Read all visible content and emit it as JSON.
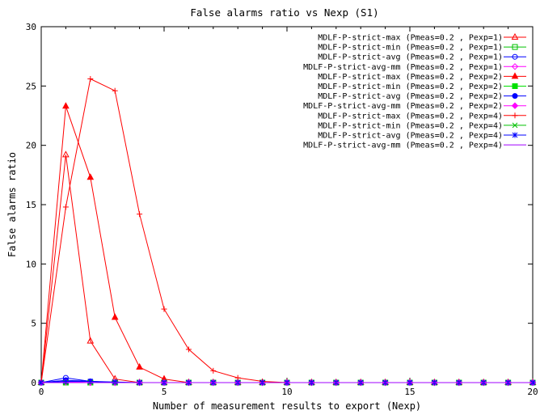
{
  "chart_data": {
    "type": "line",
    "title": "False alarms ratio vs Nexp (S1)",
    "xlabel": "Number of measurement results to export (Nexp)",
    "ylabel": "False alarms ratio",
    "xlim": [
      0,
      20
    ],
    "ylim": [
      0,
      30
    ],
    "xticks": [
      0,
      5,
      10,
      15,
      20
    ],
    "yticks": [
      0,
      5,
      10,
      15,
      20,
      25,
      30
    ],
    "grid": false,
    "legend_position": "top-right",
    "series": [
      {
        "name": "MDLF-P-strict-max (Pmeas=0.2 , Pexp=1)",
        "color": "#ff0000",
        "marker": "triangle-open",
        "x": [
          0,
          1,
          2,
          3,
          4,
          5,
          6,
          7,
          8,
          9,
          10,
          11,
          12,
          13,
          14,
          15,
          16,
          17,
          18,
          19,
          20
        ],
        "y": [
          0,
          19.2,
          3.5,
          0.3,
          0,
          0,
          0,
          0,
          0,
          0,
          0,
          0,
          0,
          0,
          0,
          0,
          0,
          0,
          0,
          0,
          0
        ]
      },
      {
        "name": "MDLF-P-strict-min (Pmeas=0.2 , Pexp=1)",
        "color": "#00c000",
        "marker": "square-open",
        "x": [
          0,
          1,
          2,
          3,
          4,
          5,
          6,
          7,
          8,
          9,
          10,
          11,
          12,
          13,
          14,
          15,
          16,
          17,
          18,
          19,
          20
        ],
        "y": [
          0,
          0,
          0,
          0,
          0,
          0,
          0,
          0,
          0,
          0,
          0,
          0,
          0,
          0,
          0,
          0,
          0,
          0,
          0,
          0,
          0
        ]
      },
      {
        "name": "MDLF-P-strict-avg (Pmeas=0.2 , Pexp=1)",
        "color": "#0000ff",
        "marker": "circle-open",
        "x": [
          0,
          1,
          2,
          3,
          4,
          5,
          6,
          7,
          8,
          9,
          10,
          11,
          12,
          13,
          14,
          15,
          16,
          17,
          18,
          19,
          20
        ],
        "y": [
          0,
          0.4,
          0.1,
          0,
          0,
          0,
          0,
          0,
          0,
          0,
          0,
          0,
          0,
          0,
          0,
          0,
          0,
          0,
          0,
          0,
          0
        ]
      },
      {
        "name": "MDLF-P-strict-avg-mm (Pmeas=0.2 , Pexp=1)",
        "color": "#ff00ff",
        "marker": "diamond-open",
        "x": [
          0,
          1,
          2,
          3,
          4,
          5,
          6,
          7,
          8,
          9,
          10,
          11,
          12,
          13,
          14,
          15,
          16,
          17,
          18,
          19,
          20
        ],
        "y": [
          0,
          0.1,
          0,
          0,
          0,
          0,
          0,
          0,
          0,
          0,
          0,
          0,
          0,
          0,
          0,
          0,
          0,
          0,
          0,
          0,
          0
        ]
      },
      {
        "name": "MDLF-P-strict-max (Pmeas=0.2 , Pexp=2)",
        "color": "#ff0000",
        "marker": "triangle-filled",
        "x": [
          0,
          1,
          2,
          3,
          4,
          5,
          6,
          7,
          8,
          9,
          10,
          11,
          12,
          13,
          14,
          15,
          16,
          17,
          18,
          19,
          20
        ],
        "y": [
          0,
          23.3,
          17.3,
          5.5,
          1.3,
          0.3,
          0,
          0,
          0,
          0,
          0,
          0,
          0,
          0,
          0,
          0,
          0,
          0,
          0,
          0,
          0
        ]
      },
      {
        "name": "MDLF-P-strict-min (Pmeas=0.2 , Pexp=2)",
        "color": "#00e000",
        "marker": "square-filled",
        "x": [
          0,
          1,
          2,
          3,
          4,
          5,
          6,
          7,
          8,
          9,
          10,
          11,
          12,
          13,
          14,
          15,
          16,
          17,
          18,
          19,
          20
        ],
        "y": [
          0,
          0,
          0,
          0,
          0,
          0,
          0,
          0,
          0,
          0,
          0,
          0,
          0,
          0,
          0,
          0,
          0,
          0,
          0,
          0,
          0
        ]
      },
      {
        "name": "MDLF-P-strict-avg (Pmeas=0.2 , Pexp=2)",
        "color": "#0000ff",
        "marker": "circle-filled",
        "x": [
          0,
          1,
          2,
          3,
          4,
          5,
          6,
          7,
          8,
          9,
          10,
          11,
          12,
          13,
          14,
          15,
          16,
          17,
          18,
          19,
          20
        ],
        "y": [
          0,
          0.2,
          0.1,
          0,
          0,
          0,
          0,
          0,
          0,
          0,
          0,
          0,
          0,
          0,
          0,
          0,
          0,
          0,
          0,
          0,
          0
        ]
      },
      {
        "name": "MDLF-P-strict-avg-mm (Pmeas=0.2 , Pexp=2)",
        "color": "#ff00ff",
        "marker": "diamond-filled",
        "x": [
          0,
          1,
          2,
          3,
          4,
          5,
          6,
          7,
          8,
          9,
          10,
          11,
          12,
          13,
          14,
          15,
          16,
          17,
          18,
          19,
          20
        ],
        "y": [
          0,
          0.05,
          0,
          0,
          0,
          0,
          0,
          0,
          0,
          0,
          0,
          0,
          0,
          0,
          0,
          0,
          0,
          0,
          0,
          0,
          0
        ]
      },
      {
        "name": "MDLF-P-strict-max (Pmeas=0.2 , Pexp=4)",
        "color": "#ff0000",
        "marker": "plus",
        "x": [
          0,
          1,
          2,
          3,
          4,
          5,
          6,
          7,
          8,
          9,
          10,
          11,
          12,
          13,
          14,
          15,
          16,
          17,
          18,
          19,
          20
        ],
        "y": [
          0,
          14.8,
          25.6,
          24.6,
          14.2,
          6.2,
          2.8,
          1.0,
          0.4,
          0.1,
          0,
          0,
          0,
          0,
          0,
          0,
          0,
          0,
          0,
          0,
          0
        ]
      },
      {
        "name": "MDLF-P-strict-min (Pmeas=0.2 , Pexp=4)",
        "color": "#00c000",
        "marker": "cross",
        "x": [
          0,
          1,
          2,
          3,
          4,
          5,
          6,
          7,
          8,
          9,
          10,
          11,
          12,
          13,
          14,
          15,
          16,
          17,
          18,
          19,
          20
        ],
        "y": [
          0,
          0,
          0,
          0,
          0,
          0,
          0,
          0,
          0,
          0,
          0,
          0,
          0,
          0,
          0,
          0,
          0,
          0,
          0,
          0,
          0
        ]
      },
      {
        "name": "MDLF-P-strict-avg (Pmeas=0.2 , Pexp=4)",
        "color": "#0000ff",
        "marker": "star",
        "x": [
          0,
          1,
          2,
          3,
          4,
          5,
          6,
          7,
          8,
          9,
          10,
          11,
          12,
          13,
          14,
          15,
          16,
          17,
          18,
          19,
          20
        ],
        "y": [
          0,
          0.1,
          0.1,
          0.05,
          0,
          0,
          0,
          0,
          0,
          0,
          0,
          0,
          0,
          0,
          0,
          0,
          0,
          0,
          0,
          0,
          0
        ]
      },
      {
        "name": "MDLF-P-strict-avg-mm (Pmeas=0.2 , Pexp=4)",
        "color": "#a000ff",
        "marker": "none",
        "x": [
          0,
          1,
          2,
          3,
          4,
          5,
          6,
          7,
          8,
          9,
          10,
          11,
          12,
          13,
          14,
          15,
          16,
          17,
          18,
          19,
          20
        ],
        "y": [
          0,
          0,
          0,
          0,
          0,
          0,
          0,
          0,
          0,
          0,
          0,
          0,
          0,
          0,
          0,
          0,
          0,
          0,
          0,
          0,
          0
        ]
      }
    ]
  }
}
